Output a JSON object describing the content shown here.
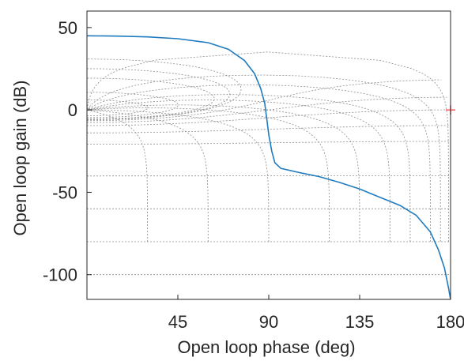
{
  "chart_data": {
    "type": "line",
    "title": "",
    "xlabel": "Open loop phase  (deg)",
    "ylabel": "Open loop gain  (dB)",
    "xlim": [
      0,
      180
    ],
    "ylim": [
      -115,
      60
    ],
    "xticks": [
      45,
      90,
      135,
      180
    ],
    "yticks": [
      50,
      0,
      -50,
      -100
    ],
    "xtick_labels": [
      "45",
      "90",
      "135",
      "180"
    ],
    "ytick_labels": [
      "50",
      "0",
      "-50",
      "-100"
    ],
    "grid": "Nichols chart grid (constant closed-loop gain and phase contours)",
    "critical_point": {
      "x": 180,
      "y": 0
    },
    "colors": {
      "series": "#1f7bbf",
      "grid": "#8c8c8c",
      "critical_point": "#ff6666",
      "axes": "#262626"
    },
    "series": [
      {
        "points": [
          [
            0,
            45
          ],
          [
            15,
            44.8
          ],
          [
            30,
            44.3
          ],
          [
            45,
            43.2
          ],
          [
            60,
            40.8
          ],
          [
            70,
            36.8
          ],
          [
            78,
            30
          ],
          [
            83,
            22
          ],
          [
            86,
            13
          ],
          [
            88,
            4
          ],
          [
            89,
            -5
          ],
          [
            90,
            -15
          ],
          [
            91.5,
            -25
          ],
          [
            93,
            -32
          ],
          [
            96,
            -35.5
          ],
          [
            105,
            -38
          ],
          [
            115,
            -40.5
          ],
          [
            125,
            -44
          ],
          [
            135,
            -48
          ],
          [
            145,
            -53
          ],
          [
            155,
            -58
          ],
          [
            163,
            -64
          ],
          [
            170,
            -74
          ],
          [
            174,
            -85
          ],
          [
            177,
            -96
          ],
          [
            179,
            -108
          ],
          [
            180,
            -115
          ]
        ]
      }
    ]
  }
}
